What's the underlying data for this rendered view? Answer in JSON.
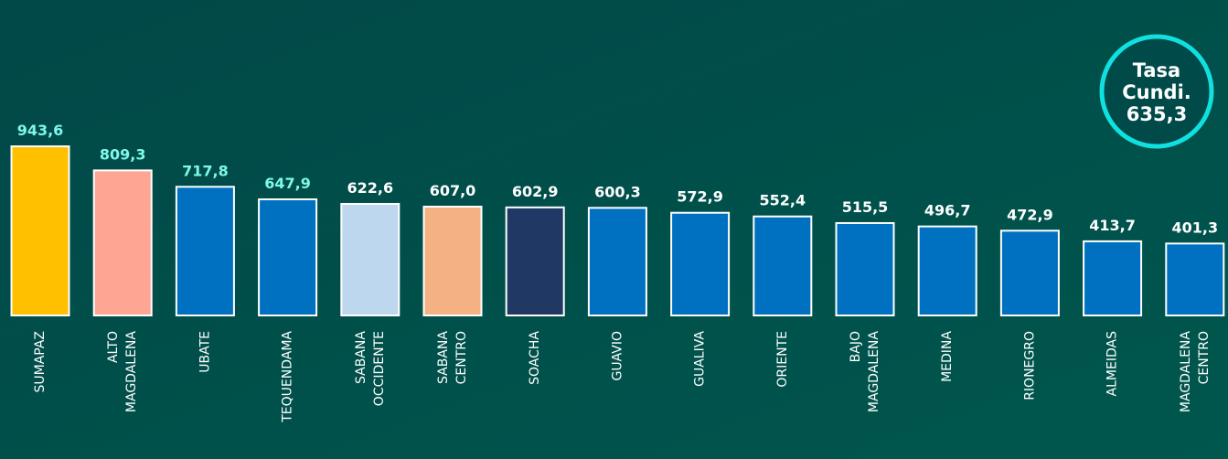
{
  "chart_data": {
    "type": "bar",
    "categories": [
      [
        "SUMAPAZ"
      ],
      [
        "ALTO",
        "MAGDALENA"
      ],
      [
        "UBATE"
      ],
      [
        "TEQUENDAMA"
      ],
      [
        "SABANA",
        "OCCIDENTE"
      ],
      [
        "SABANA",
        "CENTRO"
      ],
      [
        "SOACHA"
      ],
      [
        "GUAVIO"
      ],
      [
        "GUALIVA"
      ],
      [
        "ORIENTE"
      ],
      [
        "BAJO",
        "MAGDALENA"
      ],
      [
        "MEDINA"
      ],
      [
        "RIONEGRO"
      ],
      [
        "ALMEIDAS"
      ],
      [
        "MAGDALENA",
        "CENTRO"
      ]
    ],
    "values": [
      943.6,
      809.3,
      717.8,
      647.9,
      622.6,
      607.0,
      602.9,
      600.3,
      572.9,
      552.4,
      515.5,
      496.7,
      472.9,
      413.7,
      401.3
    ],
    "value_labels": [
      "943,6",
      "809,3",
      "717,8",
      "647,9",
      "622,6",
      "607,0",
      "602,9",
      "600,3",
      "572,9",
      "552,4",
      "515,5",
      "496,7",
      "472,9",
      "413,7",
      "401,3"
    ],
    "colors": [
      "#ffc000",
      "#ffa593",
      "#0070c0",
      "#0070c0",
      "#bdd7ee",
      "#f4b183",
      "#203864",
      "#0070c0",
      "#0070c0",
      "#0070c0",
      "#0070c0",
      "#0070c0",
      "#0070c0",
      "#0070c0",
      "#0070c0"
    ],
    "label_colors": [
      "#7ff7ea",
      "#7ff7ea",
      "#7ff7ea",
      "#7ff7ea",
      "#ffffff",
      "#ffffff",
      "#ffffff",
      "#ffffff",
      "#ffffff",
      "#ffffff",
      "#ffffff",
      "#ffffff",
      "#ffffff",
      "#ffffff",
      "#ffffff"
    ],
    "ylim": [
      0,
      1000
    ],
    "annotation": [
      "Tasa",
      "Cundi.",
      "635,3"
    ]
  }
}
